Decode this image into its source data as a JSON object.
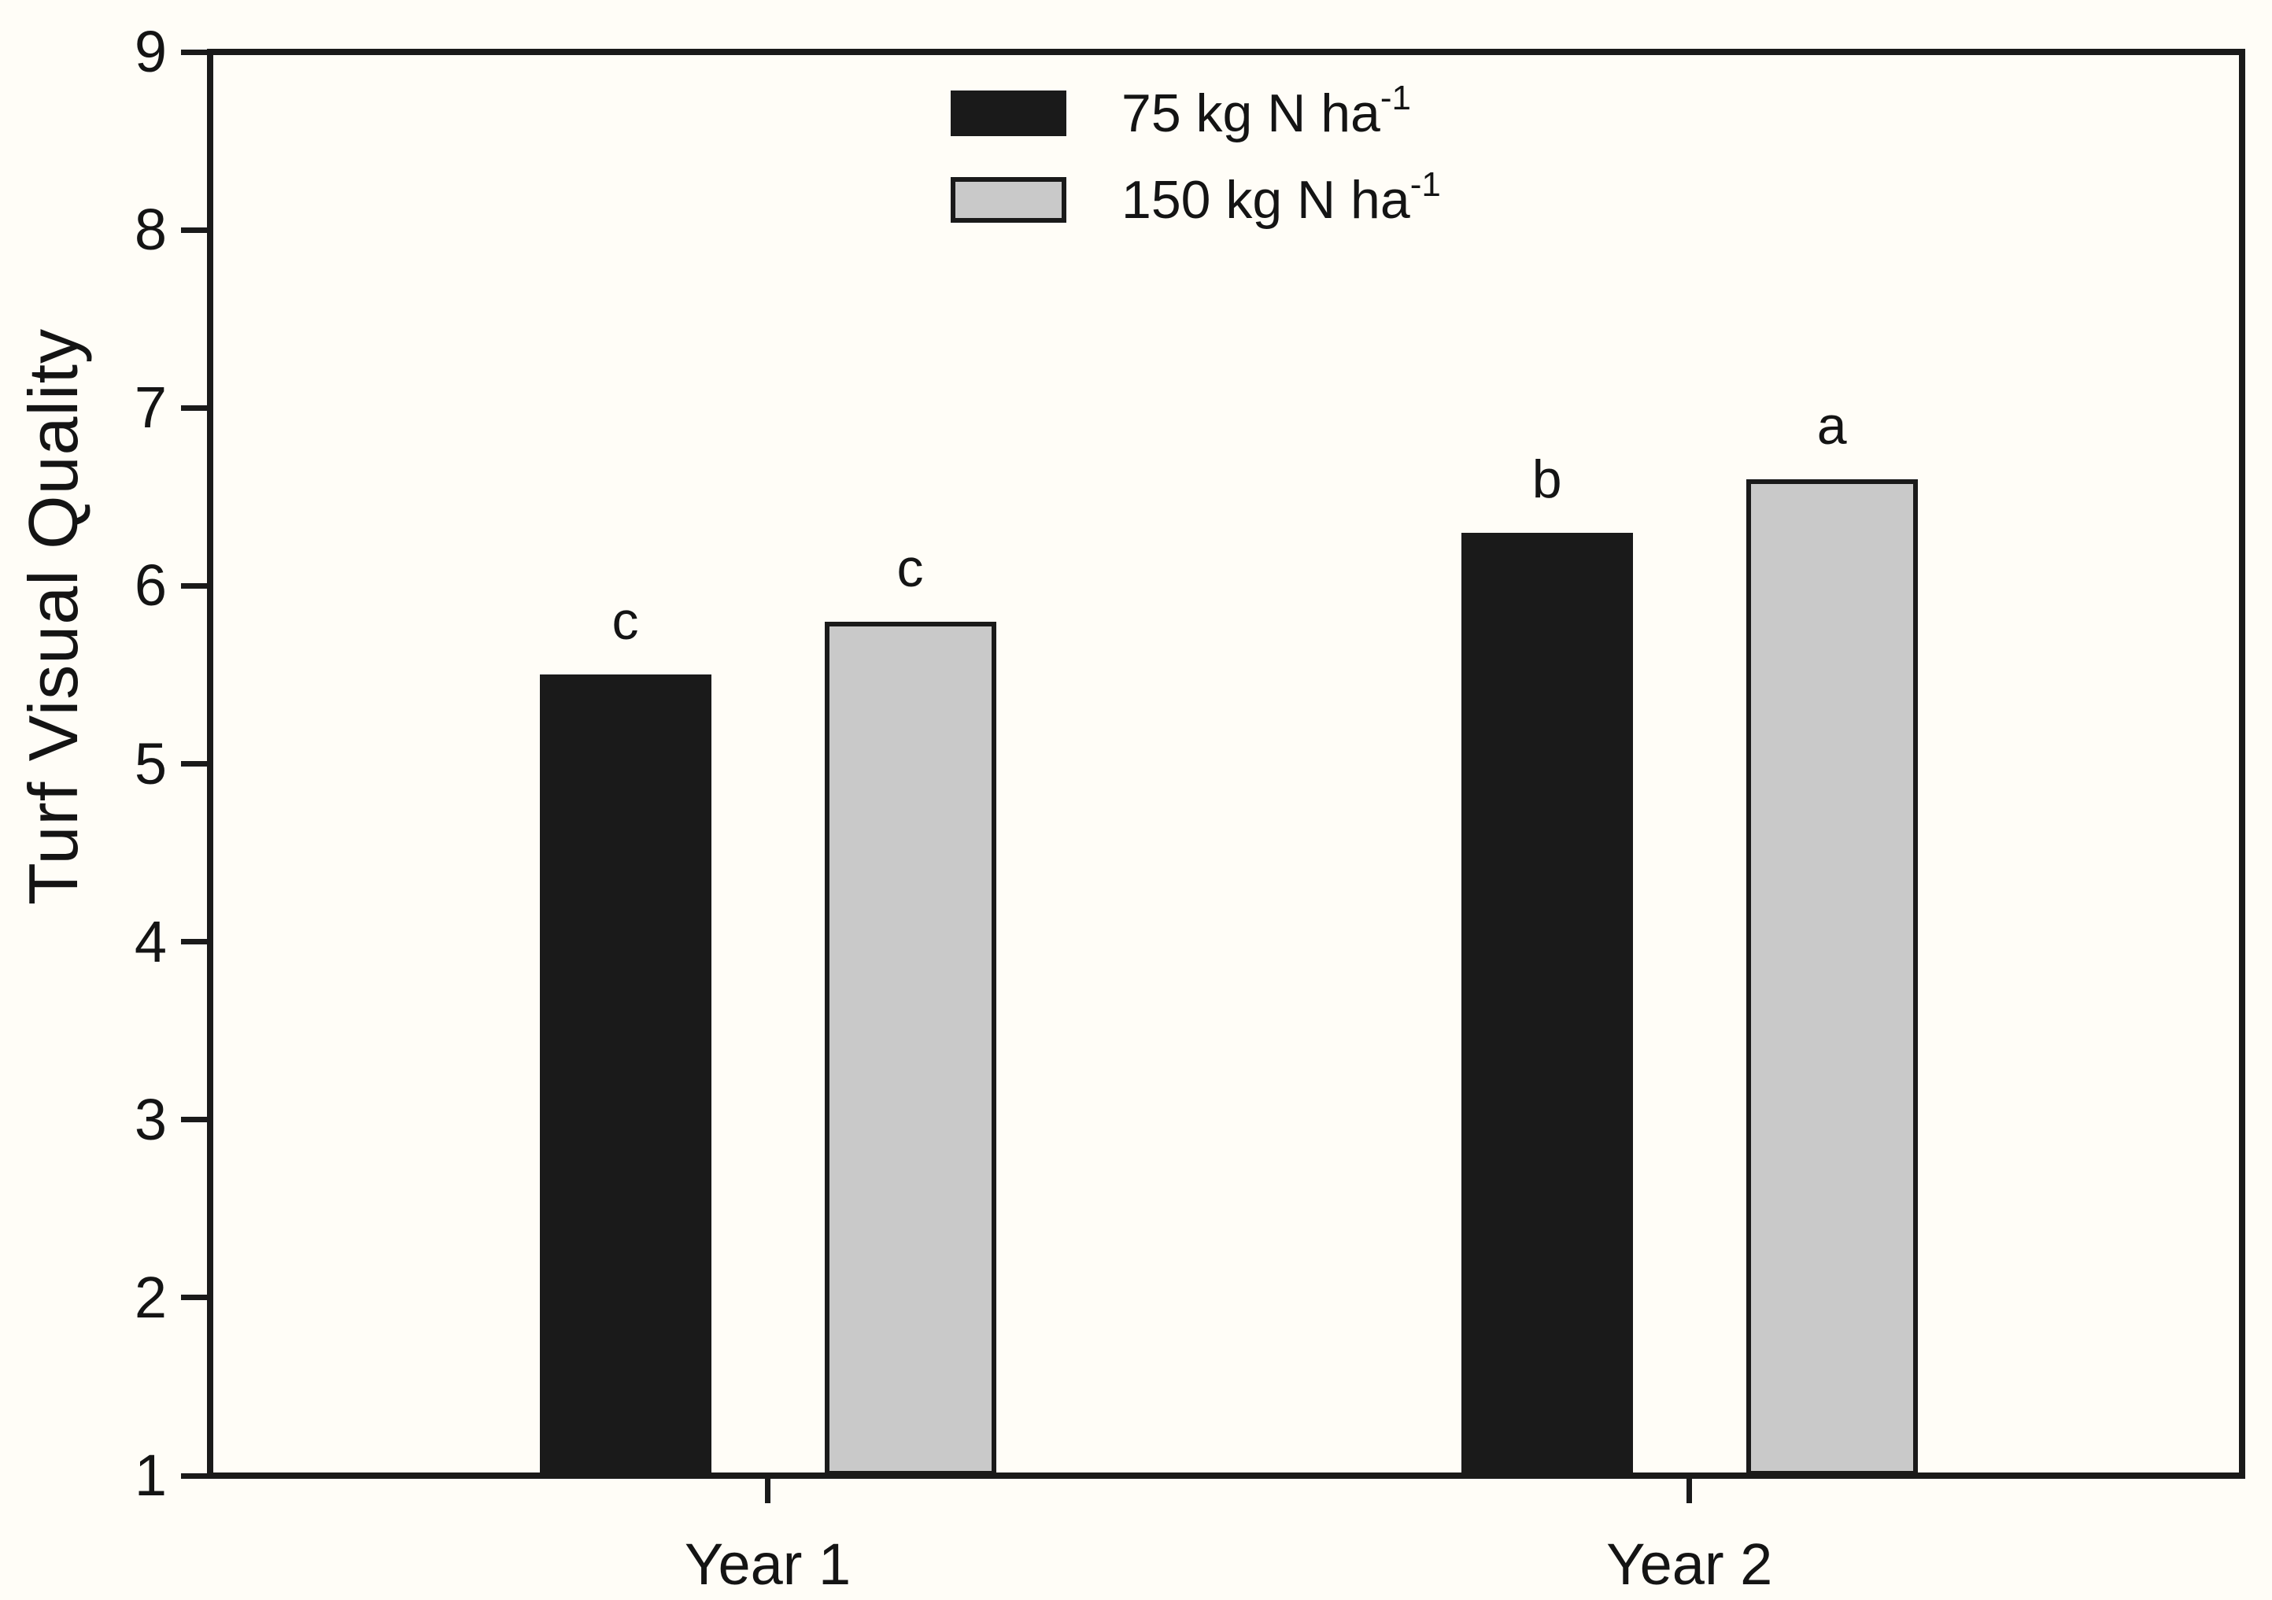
{
  "chart_data": {
    "type": "bar",
    "title": "",
    "xlabel": "",
    "ylabel": "Turf Visual Quality",
    "ylim": [
      1,
      9
    ],
    "yticks": [
      1,
      2,
      3,
      4,
      5,
      6,
      7,
      8,
      9
    ],
    "grid": false,
    "frame": "full-box",
    "legend_position": "top-center-inside",
    "categories": [
      "Year 1",
      "Year 2"
    ],
    "series": [
      {
        "name": "75 kg N ha",
        "name_superscript": "-1",
        "color": "#1a1a1a",
        "values": [
          5.5,
          6.3
        ],
        "significance_letters": [
          "c",
          "b"
        ]
      },
      {
        "name": "150 kg N ha",
        "name_superscript": "-1",
        "color": "#c9c9c9",
        "values": [
          5.8,
          6.6
        ],
        "significance_letters": [
          "c",
          "a"
        ]
      }
    ]
  },
  "colors": {
    "background": "#fffdf7",
    "axis": "#1a1a1a",
    "text": "#141414",
    "bar_black": "#1a1a1a",
    "bar_gray": "#c9c9c9"
  }
}
